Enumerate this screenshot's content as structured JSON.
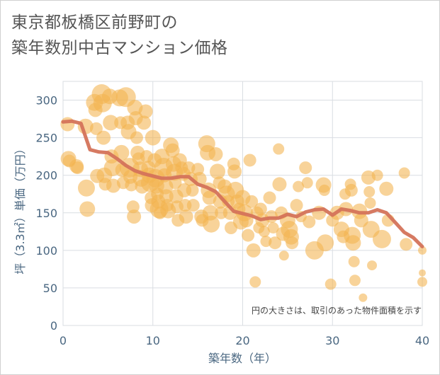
{
  "page": {
    "title_line1": "東京都板橋区前野町の",
    "title_line2": "築年数別中古マンション価格"
  },
  "chart_data": {
    "type": "scatter",
    "title": "東京都板橋区前野町の 築年数別中古マンション価格",
    "xlabel": "築年数（年）",
    "ylabel": "坪（3.3㎡）単価（万円）",
    "xlim": [
      0,
      40
    ],
    "ylim": [
      0,
      325
    ],
    "xticks": [
      0,
      10,
      20,
      30,
      40
    ],
    "yticks": [
      0,
      50,
      100,
      150,
      200,
      250,
      300
    ],
    "grid": true,
    "note": "円の大きさは、取引のあった物件面積を示す",
    "colors": {
      "bubble": "#f3b44f",
      "line": "#d4735a",
      "grid": "#d9dde2",
      "axis_text": "#4a6781"
    },
    "points": [
      {
        "x": 0.5,
        "y": 268,
        "s": 10
      },
      {
        "x": 0.6,
        "y": 222,
        "s": 11
      },
      {
        "x": 0.7,
        "y": 219,
        "s": 9
      },
      {
        "x": 1.5,
        "y": 212,
        "s": 10
      },
      {
        "x": 1.6,
        "y": 210,
        "s": 9
      },
      {
        "x": 2.5,
        "y": 265,
        "s": 11
      },
      {
        "x": 2.6,
        "y": 183,
        "s": 12
      },
      {
        "x": 2.7,
        "y": 155,
        "s": 11
      },
      {
        "x": 3.5,
        "y": 297,
        "s": 12
      },
      {
        "x": 3.6,
        "y": 287,
        "s": 10
      },
      {
        "x": 3.7,
        "y": 262,
        "s": 9
      },
      {
        "x": 3.8,
        "y": 199,
        "s": 10
      },
      {
        "x": 4.3,
        "y": 308,
        "s": 14
      },
      {
        "x": 4.4,
        "y": 296,
        "s": 13
      },
      {
        "x": 4.5,
        "y": 250,
        "s": 10
      },
      {
        "x": 4.6,
        "y": 200,
        "s": 11
      },
      {
        "x": 4.7,
        "y": 188,
        "s": 9
      },
      {
        "x": 5.2,
        "y": 305,
        "s": 11
      },
      {
        "x": 5.3,
        "y": 270,
        "s": 11
      },
      {
        "x": 5.4,
        "y": 225,
        "s": 10
      },
      {
        "x": 5.5,
        "y": 210,
        "s": 12
      },
      {
        "x": 5.6,
        "y": 186,
        "s": 10
      },
      {
        "x": 6.3,
        "y": 303,
        "s": 12
      },
      {
        "x": 6.4,
        "y": 270,
        "s": 9
      },
      {
        "x": 6.5,
        "y": 230,
        "s": 11
      },
      {
        "x": 6.6,
        "y": 207,
        "s": 10
      },
      {
        "x": 6.7,
        "y": 190,
        "s": 9
      },
      {
        "x": 7.0,
        "y": 304,
        "s": 14
      },
      {
        "x": 7.2,
        "y": 270,
        "s": 10
      },
      {
        "x": 7.3,
        "y": 258,
        "s": 11
      },
      {
        "x": 7.4,
        "y": 210,
        "s": 14
      },
      {
        "x": 7.5,
        "y": 198,
        "s": 10
      },
      {
        "x": 7.6,
        "y": 187,
        "s": 9
      },
      {
        "x": 7.8,
        "y": 158,
        "s": 9
      },
      {
        "x": 7.9,
        "y": 145,
        "s": 10
      },
      {
        "x": 8.0,
        "y": 290,
        "s": 11
      },
      {
        "x": 8.1,
        "y": 276,
        "s": 10
      },
      {
        "x": 8.2,
        "y": 250,
        "s": 9
      },
      {
        "x": 8.3,
        "y": 230,
        "s": 10
      },
      {
        "x": 8.4,
        "y": 222,
        "s": 9
      },
      {
        "x": 8.6,
        "y": 208,
        "s": 11
      },
      {
        "x": 8.7,
        "y": 196,
        "s": 12
      },
      {
        "x": 8.8,
        "y": 185,
        "s": 10
      },
      {
        "x": 9.0,
        "y": 270,
        "s": 10
      },
      {
        "x": 9.2,
        "y": 285,
        "s": 10
      },
      {
        "x": 9.3,
        "y": 225,
        "s": 9
      },
      {
        "x": 9.5,
        "y": 210,
        "s": 10
      },
      {
        "x": 9.6,
        "y": 200,
        "s": 11
      },
      {
        "x": 9.7,
        "y": 190,
        "s": 13
      },
      {
        "x": 9.8,
        "y": 170,
        "s": 9
      },
      {
        "x": 9.9,
        "y": 160,
        "s": 10
      },
      {
        "x": 10.0,
        "y": 250,
        "s": 11
      },
      {
        "x": 10.2,
        "y": 220,
        "s": 10
      },
      {
        "x": 10.3,
        "y": 196,
        "s": 13
      },
      {
        "x": 10.4,
        "y": 186,
        "s": 11
      },
      {
        "x": 10.5,
        "y": 175,
        "s": 9
      },
      {
        "x": 10.6,
        "y": 165,
        "s": 10
      },
      {
        "x": 10.7,
        "y": 155,
        "s": 13
      },
      {
        "x": 10.8,
        "y": 150,
        "s": 9
      },
      {
        "x": 11.0,
        "y": 225,
        "s": 11
      },
      {
        "x": 11.2,
        "y": 211,
        "s": 13
      },
      {
        "x": 11.3,
        "y": 200,
        "s": 10
      },
      {
        "x": 11.4,
        "y": 185,
        "s": 11
      },
      {
        "x": 11.5,
        "y": 172,
        "s": 10
      },
      {
        "x": 11.6,
        "y": 160,
        "s": 9
      },
      {
        "x": 11.7,
        "y": 153,
        "s": 11
      },
      {
        "x": 12.0,
        "y": 240,
        "s": 11
      },
      {
        "x": 12.2,
        "y": 233,
        "s": 10
      },
      {
        "x": 12.3,
        "y": 215,
        "s": 11
      },
      {
        "x": 12.4,
        "y": 204,
        "s": 12
      },
      {
        "x": 12.5,
        "y": 190,
        "s": 9
      },
      {
        "x": 12.6,
        "y": 172,
        "s": 10
      },
      {
        "x": 12.7,
        "y": 158,
        "s": 9
      },
      {
        "x": 12.8,
        "y": 140,
        "s": 9
      },
      {
        "x": 13.0,
        "y": 220,
        "s": 10
      },
      {
        "x": 13.2,
        "y": 210,
        "s": 9
      },
      {
        "x": 13.4,
        "y": 202,
        "s": 10
      },
      {
        "x": 13.5,
        "y": 180,
        "s": 10
      },
      {
        "x": 13.6,
        "y": 160,
        "s": 9
      },
      {
        "x": 13.7,
        "y": 145,
        "s": 10
      },
      {
        "x": 14.0,
        "y": 210,
        "s": 9
      },
      {
        "x": 14.2,
        "y": 195,
        "s": 10
      },
      {
        "x": 14.4,
        "y": 180,
        "s": 9
      },
      {
        "x": 14.5,
        "y": 160,
        "s": 9
      },
      {
        "x": 15.0,
        "y": 208,
        "s": 9
      },
      {
        "x": 15.2,
        "y": 195,
        "s": 10
      },
      {
        "x": 15.4,
        "y": 145,
        "s": 10
      },
      {
        "x": 15.5,
        "y": 140,
        "s": 9
      },
      {
        "x": 16.0,
        "y": 242,
        "s": 12
      },
      {
        "x": 16.1,
        "y": 230,
        "s": 11
      },
      {
        "x": 16.2,
        "y": 180,
        "s": 11
      },
      {
        "x": 16.3,
        "y": 170,
        "s": 10
      },
      {
        "x": 16.4,
        "y": 150,
        "s": 11
      },
      {
        "x": 16.5,
        "y": 135,
        "s": 12
      },
      {
        "x": 17.0,
        "y": 228,
        "s": 10
      },
      {
        "x": 17.2,
        "y": 205,
        "s": 11
      },
      {
        "x": 17.4,
        "y": 190,
        "s": 9
      },
      {
        "x": 17.5,
        "y": 165,
        "s": 10
      },
      {
        "x": 17.6,
        "y": 150,
        "s": 9
      },
      {
        "x": 18.0,
        "y": 185,
        "s": 10
      },
      {
        "x": 18.2,
        "y": 175,
        "s": 12
      },
      {
        "x": 18.4,
        "y": 165,
        "s": 9
      },
      {
        "x": 18.6,
        "y": 150,
        "s": 10
      },
      {
        "x": 18.7,
        "y": 130,
        "s": 9
      },
      {
        "x": 19.0,
        "y": 215,
        "s": 9
      },
      {
        "x": 19.1,
        "y": 205,
        "s": 10
      },
      {
        "x": 19.2,
        "y": 180,
        "s": 12
      },
      {
        "x": 19.4,
        "y": 165,
        "s": 10
      },
      {
        "x": 19.6,
        "y": 155,
        "s": 9
      },
      {
        "x": 19.8,
        "y": 138,
        "s": 11
      },
      {
        "x": 20.0,
        "y": 170,
        "s": 11
      },
      {
        "x": 20.2,
        "y": 150,
        "s": 12
      },
      {
        "x": 20.4,
        "y": 140,
        "s": 10
      },
      {
        "x": 20.6,
        "y": 120,
        "s": 9
      },
      {
        "x": 20.8,
        "y": 220,
        "s": 9
      },
      {
        "x": 21.0,
        "y": 165,
        "s": 9
      },
      {
        "x": 21.2,
        "y": 100,
        "s": 10
      },
      {
        "x": 21.4,
        "y": 58,
        "s": 8
      },
      {
        "x": 21.6,
        "y": 150,
        "s": 9
      },
      {
        "x": 21.8,
        "y": 130,
        "s": 8
      },
      {
        "x": 22.0,
        "y": 155,
        "s": 9
      },
      {
        "x": 22.2,
        "y": 140,
        "s": 10
      },
      {
        "x": 22.4,
        "y": 125,
        "s": 8
      },
      {
        "x": 22.6,
        "y": 112,
        "s": 8
      },
      {
        "x": 23.0,
        "y": 170,
        "s": 9
      },
      {
        "x": 23.2,
        "y": 145,
        "s": 9
      },
      {
        "x": 23.4,
        "y": 130,
        "s": 8
      },
      {
        "x": 23.6,
        "y": 110,
        "s": 9
      },
      {
        "x": 24.0,
        "y": 235,
        "s": 8
      },
      {
        "x": 24.1,
        "y": 188,
        "s": 10
      },
      {
        "x": 24.3,
        "y": 150,
        "s": 9
      },
      {
        "x": 24.5,
        "y": 122,
        "s": 10
      },
      {
        "x": 24.6,
        "y": 93,
        "s": 7
      },
      {
        "x": 25.0,
        "y": 140,
        "s": 11
      },
      {
        "x": 25.2,
        "y": 128,
        "s": 12
      },
      {
        "x": 25.4,
        "y": 118,
        "s": 11
      },
      {
        "x": 25.5,
        "y": 110,
        "s": 9
      },
      {
        "x": 26.0,
        "y": 160,
        "s": 9
      },
      {
        "x": 26.2,
        "y": 185,
        "s": 8
      },
      {
        "x": 26.5,
        "y": 145,
        "s": 8
      },
      {
        "x": 27.0,
        "y": 210,
        "s": 9
      },
      {
        "x": 27.2,
        "y": 190,
        "s": 8
      },
      {
        "x": 27.4,
        "y": 138,
        "s": 9
      },
      {
        "x": 28.0,
        "y": 100,
        "s": 13
      },
      {
        "x": 28.5,
        "y": 150,
        "s": 10
      },
      {
        "x": 29.0,
        "y": 187,
        "s": 11
      },
      {
        "x": 29.1,
        "y": 180,
        "s": 8
      },
      {
        "x": 29.2,
        "y": 110,
        "s": 12
      },
      {
        "x": 29.8,
        "y": 55,
        "s": 8
      },
      {
        "x": 30.0,
        "y": 140,
        "s": 9
      },
      {
        "x": 30.5,
        "y": 150,
        "s": 10
      },
      {
        "x": 31.0,
        "y": 128,
        "s": 11
      },
      {
        "x": 31.2,
        "y": 118,
        "s": 9
      },
      {
        "x": 31.4,
        "y": 175,
        "s": 8
      },
      {
        "x": 31.5,
        "y": 155,
        "s": 10
      },
      {
        "x": 32.0,
        "y": 188,
        "s": 8
      },
      {
        "x": 32.1,
        "y": 180,
        "s": 9
      },
      {
        "x": 32.2,
        "y": 120,
        "s": 12
      },
      {
        "x": 32.3,
        "y": 110,
        "s": 11
      },
      {
        "x": 32.4,
        "y": 85,
        "s": 8
      },
      {
        "x": 32.5,
        "y": 60,
        "s": 8
      },
      {
        "x": 33.0,
        "y": 152,
        "s": 11
      },
      {
        "x": 33.2,
        "y": 140,
        "s": 10
      },
      {
        "x": 33.4,
        "y": 37,
        "s": 6
      },
      {
        "x": 34.0,
        "y": 197,
        "s": 10
      },
      {
        "x": 34.1,
        "y": 178,
        "s": 8
      },
      {
        "x": 34.2,
        "y": 163,
        "s": 8
      },
      {
        "x": 34.3,
        "y": 128,
        "s": 12
      },
      {
        "x": 34.4,
        "y": 80,
        "s": 7
      },
      {
        "x": 35.0,
        "y": 200,
        "s": 8
      },
      {
        "x": 35.5,
        "y": 115,
        "s": 13
      },
      {
        "x": 36.0,
        "y": 182,
        "s": 10
      },
      {
        "x": 36.2,
        "y": 140,
        "s": 9
      },
      {
        "x": 38.0,
        "y": 203,
        "s": 8
      },
      {
        "x": 38.2,
        "y": 108,
        "s": 9
      },
      {
        "x": 40.0,
        "y": 100,
        "s": 6
      },
      {
        "x": 40.0,
        "y": 70,
        "s": 5
      },
      {
        "x": 40.0,
        "y": 58,
        "s": 7
      }
    ],
    "trend": {
      "x": [
        0,
        1,
        2,
        3,
        4,
        5,
        6,
        7,
        8,
        9,
        10,
        11,
        12,
        13,
        14,
        15,
        16,
        17,
        18,
        19,
        20,
        21,
        22,
        23,
        24,
        25,
        26,
        27,
        28,
        29,
        30,
        31,
        32,
        33,
        34,
        35,
        36,
        37,
        38,
        39,
        40
      ],
      "y": [
        271,
        272,
        269,
        234,
        231,
        230,
        222,
        213,
        206,
        202,
        199,
        196,
        196,
        198,
        198,
        188,
        184,
        178,
        165,
        152,
        149,
        146,
        141,
        143,
        143,
        148,
        145,
        151,
        154,
        155,
        147,
        155,
        153,
        150,
        150,
        154,
        150,
        137,
        124,
        117,
        105
      ]
    }
  }
}
